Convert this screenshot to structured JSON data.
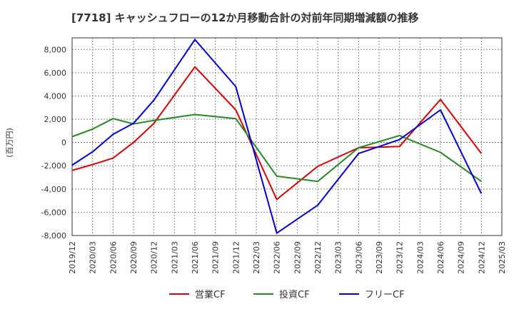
{
  "chart_data": {
    "type": "line",
    "title": "[7718]  キャッシュフローの12か月移動合計の対前年同期増減額の推移",
    "ylabel": "(百万円)",
    "xlabel": "",
    "ylim": [
      -8000,
      9000
    ],
    "yticks": [
      -8000,
      -6000,
      -4000,
      -2000,
      0,
      2000,
      4000,
      6000,
      8000
    ],
    "ytick_labels": [
      "-8,000",
      "-6,000",
      "-4,000",
      "-2,000",
      "0",
      "2,000",
      "4,000",
      "6,000",
      "8,000"
    ],
    "categories": [
      "2019/12",
      "2020/03",
      "2020/06",
      "2020/09",
      "2020/12",
      "2021/03",
      "2021/06",
      "2021/09",
      "2021/12",
      "2022/03",
      "2022/06",
      "2022/09",
      "2022/12",
      "2023/03",
      "2023/06",
      "2023/09",
      "2023/12",
      "2024/03",
      "2024/06",
      "2024/09",
      "2024/12",
      "2025/03"
    ],
    "grid": true,
    "legend_position": "bottom",
    "series": [
      {
        "name": "営業CF",
        "color": "#dd0000",
        "x": [
          "2019/12",
          "2020/03",
          "2020/06",
          "2020/09",
          "2020/12",
          "2021/06",
          "2021/12",
          "2022/06",
          "2022/12",
          "2023/06",
          "2023/09",
          "2023/12",
          "2024/06",
          "2024/12"
        ],
        "values": [
          -2400,
          -1900,
          -1350,
          0,
          1650,
          6500,
          2800,
          -4900,
          -2050,
          -450,
          -400,
          -350,
          3700,
          -950
        ]
      },
      {
        "name": "投資CF",
        "color": "#228b22",
        "x": [
          "2019/12",
          "2020/03",
          "2020/06",
          "2020/09",
          "2020/12",
          "2021/06",
          "2021/12",
          "2022/06",
          "2022/12",
          "2023/06",
          "2023/12",
          "2024/06",
          "2024/12"
        ],
        "values": [
          500,
          1150,
          2050,
          1600,
          1900,
          2400,
          2050,
          -2900,
          -3350,
          -450,
          600,
          -850,
          -3350
        ]
      },
      {
        "name": "フリーCF",
        "color": "#0000dd",
        "x": [
          "2019/12",
          "2020/03",
          "2020/06",
          "2020/09",
          "2020/12",
          "2021/06",
          "2021/12",
          "2022/06",
          "2022/12",
          "2023/06",
          "2023/12",
          "2024/06",
          "2024/12"
        ],
        "values": [
          -1950,
          -800,
          700,
          1650,
          3650,
          8850,
          4800,
          -7800,
          -5400,
          -950,
          250,
          2800,
          -4400
        ]
      }
    ]
  }
}
